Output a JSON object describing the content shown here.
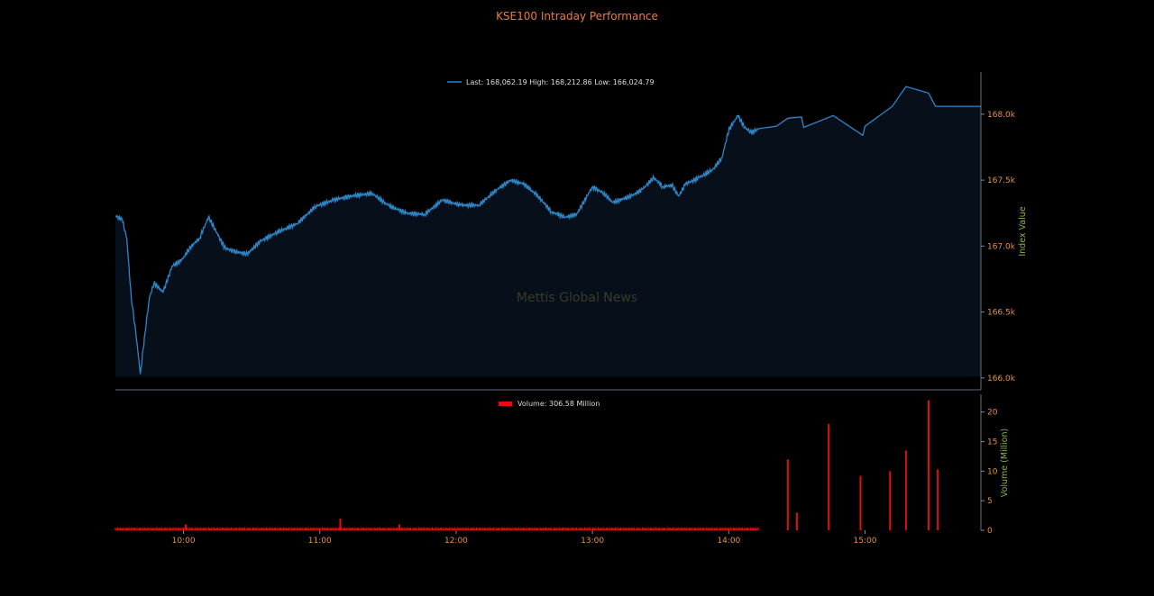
{
  "chart_data": [
    {
      "type": "line",
      "title": "KSE100 Intraday Performance",
      "ylabel": "Index Value",
      "ylim": [
        165.91,
        168.32
      ],
      "yticks": [
        166.0,
        166.5,
        167.0,
        167.5,
        168.0
      ],
      "ytick_labels": [
        "166.0k",
        "166.5k",
        "167.0k",
        "167.5k",
        "168.0k"
      ],
      "legend": "Last: 168,062.19 High: 168,212.86 Low: 166,024.79",
      "legend_placement": "top-center",
      "watermark": "Mettis Global News",
      "line_color": "#2f86c8",
      "fill_color": "#07101a",
      "points": [
        [
          "09:30",
          167.23
        ],
        [
          "09:33",
          167.2
        ],
        [
          "09:35",
          167.06
        ],
        [
          "09:37",
          166.61
        ],
        [
          "09:39",
          166.34
        ],
        [
          "09:41",
          166.03
        ],
        [
          "09:43",
          166.34
        ],
        [
          "09:45",
          166.61
        ],
        [
          "09:47",
          166.72
        ],
        [
          "09:51",
          166.65
        ],
        [
          "09:55",
          166.85
        ],
        [
          "09:59",
          166.89
        ],
        [
          "10:03",
          166.99
        ],
        [
          "10:07",
          167.06
        ],
        [
          "10:11",
          167.22
        ],
        [
          "10:15",
          167.09
        ],
        [
          "10:18",
          166.99
        ],
        [
          "10:22",
          166.96
        ],
        [
          "10:28",
          166.94
        ],
        [
          "10:34",
          167.04
        ],
        [
          "10:42",
          167.11
        ],
        [
          "10:50",
          167.17
        ],
        [
          "10:58",
          167.3
        ],
        [
          "11:06",
          167.35
        ],
        [
          "11:14",
          167.38
        ],
        [
          "11:23",
          167.4
        ],
        [
          "11:30",
          167.31
        ],
        [
          "11:38",
          167.25
        ],
        [
          "11:46",
          167.24
        ],
        [
          "11:54",
          167.35
        ],
        [
          "12:02",
          167.31
        ],
        [
          "12:10",
          167.31
        ],
        [
          "12:18",
          167.43
        ],
        [
          "12:24",
          167.5
        ],
        [
          "12:30",
          167.47
        ],
        [
          "12:36",
          167.38
        ],
        [
          "12:42",
          167.26
        ],
        [
          "12:48",
          167.22
        ],
        [
          "12:53",
          167.24
        ],
        [
          "13:00",
          167.45
        ],
        [
          "13:05",
          167.4
        ],
        [
          "13:09",
          167.33
        ],
        [
          "13:17",
          167.38
        ],
        [
          "13:22",
          167.43
        ],
        [
          "13:27",
          167.52
        ],
        [
          "13:31",
          167.45
        ],
        [
          "13:35",
          167.46
        ],
        [
          "13:38",
          167.38
        ],
        [
          "13:41",
          167.47
        ],
        [
          "13:47",
          167.52
        ],
        [
          "13:53",
          167.58
        ],
        [
          "13:57",
          167.67
        ],
        [
          "14:00",
          167.88
        ],
        [
          "14:04",
          167.99
        ],
        [
          "14:07",
          167.9
        ],
        [
          "14:10",
          167.86
        ],
        [
          "14:13",
          167.89
        ],
        [
          "14:21",
          167.91
        ],
        [
          "14:26",
          167.97
        ],
        [
          "14:32",
          167.98
        ],
        [
          "14:33",
          167.9
        ],
        [
          "14:46",
          167.99
        ],
        [
          "14:59",
          167.84
        ],
        [
          "15:00",
          167.91
        ],
        [
          "15:12",
          168.06
        ],
        [
          "15:18",
          168.21
        ],
        [
          "15:28",
          168.16
        ],
        [
          "15:31",
          168.06
        ],
        [
          "15:51",
          168.06
        ]
      ]
    },
    {
      "type": "bar",
      "ylabel": "Volume (Million)",
      "ylim": [
        0,
        23
      ],
      "yticks": [
        0,
        5,
        10,
        15,
        20
      ],
      "ytick_labels": [
        "0",
        "5",
        "10",
        "15",
        "20"
      ],
      "legend": "Volume: 306.58 Million",
      "legend_placement": "top-center",
      "bar_color": "#e01010",
      "baseline_volume": 0.3,
      "baseline_range": [
        "09:30",
        "14:13"
      ],
      "spikes": [
        [
          "10:01",
          1.0
        ],
        [
          "11:09",
          2.0
        ],
        [
          "11:35",
          1.0
        ],
        [
          "14:26",
          12.0
        ],
        [
          "14:30",
          3.0
        ],
        [
          "14:44",
          18.0
        ],
        [
          "14:58",
          9.2
        ],
        [
          "15:11",
          10.0
        ],
        [
          "15:18",
          13.5
        ],
        [
          "15:28",
          22.0
        ],
        [
          "15:32",
          10.3
        ]
      ],
      "xticks": [
        "10:00",
        "11:00",
        "12:00",
        "13:00",
        "14:00",
        "15:00"
      ],
      "xlim": [
        "09:30",
        "15:51"
      ]
    }
  ]
}
